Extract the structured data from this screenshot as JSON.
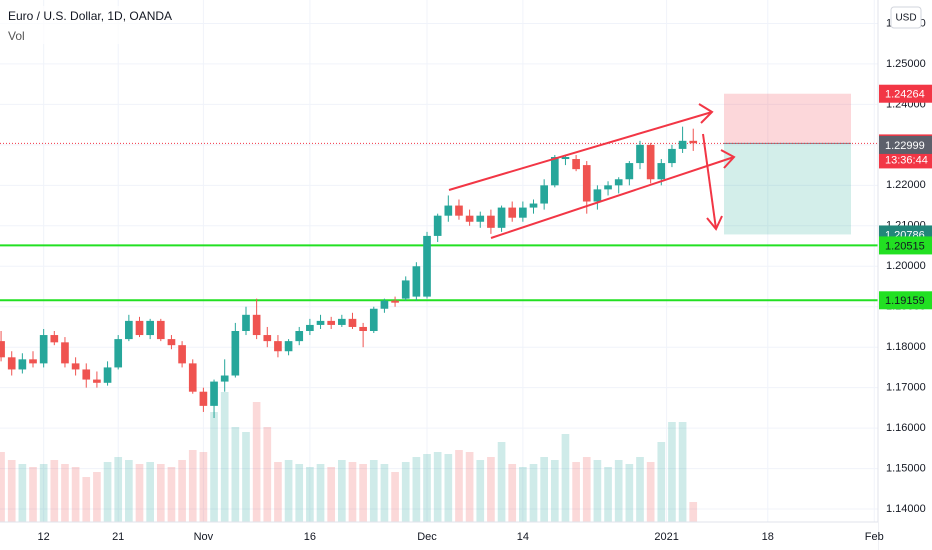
{
  "chart_data": {
    "type": "candlestick",
    "title": "Euro / U.S. Dollar, 1D, OANDA",
    "subtitle": "Vol",
    "currency": "USD",
    "up_color": "#26a69a",
    "down_color": "#ef5350",
    "xlim": [
      -0.1,
      82.35
    ],
    "ylim": [
      1.1368,
      1.2658
    ],
    "xticks": [
      {
        "value": 4,
        "label": "12"
      },
      {
        "value": 11,
        "label": "21"
      },
      {
        "value": 19,
        "label": "Nov"
      },
      {
        "value": 29,
        "label": "16"
      },
      {
        "value": 40,
        "label": "Dec"
      },
      {
        "value": 49,
        "label": "14"
      },
      {
        "value": 62.5,
        "label": "2021"
      },
      {
        "value": 72,
        "label": "18"
      },
      {
        "value": 82,
        "label": "Feb"
      }
    ],
    "yticks": [
      {
        "value": 1.26,
        "label": "1.26000"
      },
      {
        "value": 1.25,
        "label": "1.25000"
      },
      {
        "value": 1.24,
        "label": "1.24000"
      },
      {
        "value": 1.23,
        "label": "1.23000"
      },
      {
        "value": 1.22,
        "label": "1.22000"
      },
      {
        "value": 1.21,
        "label": "1.21000"
      },
      {
        "value": 1.2,
        "label": "1.20000"
      },
      {
        "value": 1.19,
        "label": "1.19000"
      },
      {
        "value": 1.18,
        "label": "1.18000"
      },
      {
        "value": 1.17,
        "label": "1.17000"
      },
      {
        "value": 1.16,
        "label": "1.16000"
      },
      {
        "value": 1.15,
        "label": "1.15000"
      },
      {
        "value": 1.14,
        "label": "1.14000"
      }
    ],
    "candles": {
      "open": [
        1.1815,
        1.1775,
        1.1745,
        1.177,
        1.176,
        1.183,
        1.1812,
        1.176,
        1.1745,
        1.172,
        1.1712,
        1.175,
        1.182,
        1.1865,
        1.183,
        1.1865,
        1.182,
        1.1805,
        1.176,
        1.169,
        1.1655,
        1.1715,
        1.173,
        1.184,
        1.188,
        1.183,
        1.1815,
        1.179,
        1.1815,
        1.184,
        1.1855,
        1.1865,
        1.1855,
        1.187,
        1.185,
        1.184,
        1.1895,
        1.1915,
        1.192,
        1.1925,
        1.1925,
        1.2075,
        1.2125,
        1.215,
        1.2125,
        1.211,
        1.2125,
        1.2095,
        1.2145,
        1.212,
        1.2145,
        1.2155,
        1.22,
        1.2265,
        1.2265,
        1.225,
        1.216,
        1.219,
        1.22,
        1.2215,
        1.2255,
        1.23,
        1.2215,
        1.2255,
        1.229,
        1.231
      ],
      "high": [
        1.184,
        1.179,
        1.1785,
        1.179,
        1.1845,
        1.184,
        1.1825,
        1.1775,
        1.176,
        1.174,
        1.1765,
        1.183,
        1.188,
        1.1875,
        1.187,
        1.187,
        1.183,
        1.1815,
        1.177,
        1.17,
        1.172,
        1.177,
        1.186,
        1.19,
        1.192,
        1.185,
        1.183,
        1.182,
        1.185,
        1.187,
        1.188,
        1.1875,
        1.188,
        1.1885,
        1.186,
        1.19,
        1.192,
        1.1925,
        1.1975,
        1.201,
        1.2085,
        1.213,
        1.2175,
        1.2165,
        1.214,
        1.2135,
        1.214,
        1.215,
        1.216,
        1.216,
        1.2165,
        1.2215,
        1.2275,
        1.2275,
        1.2275,
        1.226,
        1.22,
        1.221,
        1.222,
        1.226,
        1.231,
        1.2305,
        1.2265,
        1.23,
        1.2345,
        1.234
      ],
      "low": [
        1.1765,
        1.173,
        1.1735,
        1.175,
        1.175,
        1.1805,
        1.175,
        1.173,
        1.17,
        1.17,
        1.1705,
        1.1745,
        1.1815,
        1.1825,
        1.182,
        1.1815,
        1.1795,
        1.175,
        1.1685,
        1.164,
        1.1625,
        1.169,
        1.1725,
        1.183,
        1.182,
        1.18,
        1.1775,
        1.178,
        1.1805,
        1.183,
        1.1845,
        1.1845,
        1.185,
        1.1845,
        1.18,
        1.1835,
        1.1885,
        1.19,
        1.1915,
        1.1915,
        1.192,
        1.206,
        1.211,
        1.2115,
        1.21,
        1.2095,
        1.208,
        1.2085,
        1.211,
        1.211,
        1.213,
        1.214,
        1.2195,
        1.225,
        1.2235,
        1.213,
        1.214,
        1.2175,
        1.218,
        1.22,
        1.224,
        1.2205,
        1.22,
        1.2245,
        1.228,
        1.2285
      ],
      "close": [
        1.1775,
        1.1745,
        1.177,
        1.176,
        1.183,
        1.1812,
        1.176,
        1.1745,
        1.172,
        1.1712,
        1.175,
        1.182,
        1.1865,
        1.183,
        1.1865,
        1.182,
        1.1805,
        1.176,
        1.169,
        1.1655,
        1.1715,
        1.173,
        1.184,
        1.188,
        1.183,
        1.1815,
        1.179,
        1.1815,
        1.184,
        1.1855,
        1.1865,
        1.1855,
        1.187,
        1.185,
        1.184,
        1.1895,
        1.1915,
        1.191,
        1.1965,
        1.2,
        1.2075,
        1.2125,
        1.215,
        1.2125,
        1.211,
        1.2125,
        1.2095,
        1.2145,
        1.212,
        1.2145,
        1.2155,
        1.22,
        1.227,
        1.227,
        1.224,
        1.216,
        1.219,
        1.22,
        1.2215,
        1.2255,
        1.23,
        1.2215,
        1.2255,
        1.229,
        1.231,
        1.2304
      ]
    },
    "volume": [
      70,
      62,
      58,
      55,
      58,
      62,
      58,
      55,
      45,
      50,
      60,
      65,
      62,
      58,
      60,
      58,
      55,
      62,
      72,
      70,
      110,
      130,
      95,
      90,
      120,
      95,
      60,
      62,
      58,
      55,
      58,
      55,
      62,
      60,
      58,
      62,
      58,
      50,
      60,
      65,
      68,
      70,
      68,
      72,
      70,
      62,
      65,
      80,
      58,
      55,
      58,
      65,
      62,
      88,
      60,
      65,
      62,
      55,
      62,
      58,
      65,
      60,
      80,
      100,
      100,
      20
    ],
    "levels": [
      {
        "value": 1.20515,
        "color": "#22e022"
      },
      {
        "value": 1.19159,
        "color": "#22e022"
      }
    ],
    "position": {
      "stop": 1.24264,
      "entry": 1.23036,
      "target": 1.20786
    },
    "markers": [
      {
        "value": 1.24264,
        "color": "#f23645",
        "text_color": "#ffffff"
      },
      {
        "value": 1.23036,
        "color": "#f23645",
        "text_color": "#ffffff"
      },
      {
        "value": 1.22999,
        "color": "#5d606b",
        "text_color": "#ffffff"
      },
      {
        "value": 1.20786,
        "color": "#22867a",
        "text_color": "#ffffff"
      },
      {
        "value": 1.20515,
        "color": "#22e022",
        "text_color": "#131722"
      },
      {
        "value": 1.19159,
        "color": "#22e022",
        "text_color": "#131722"
      }
    ],
    "countdown": "13:36:44"
  }
}
